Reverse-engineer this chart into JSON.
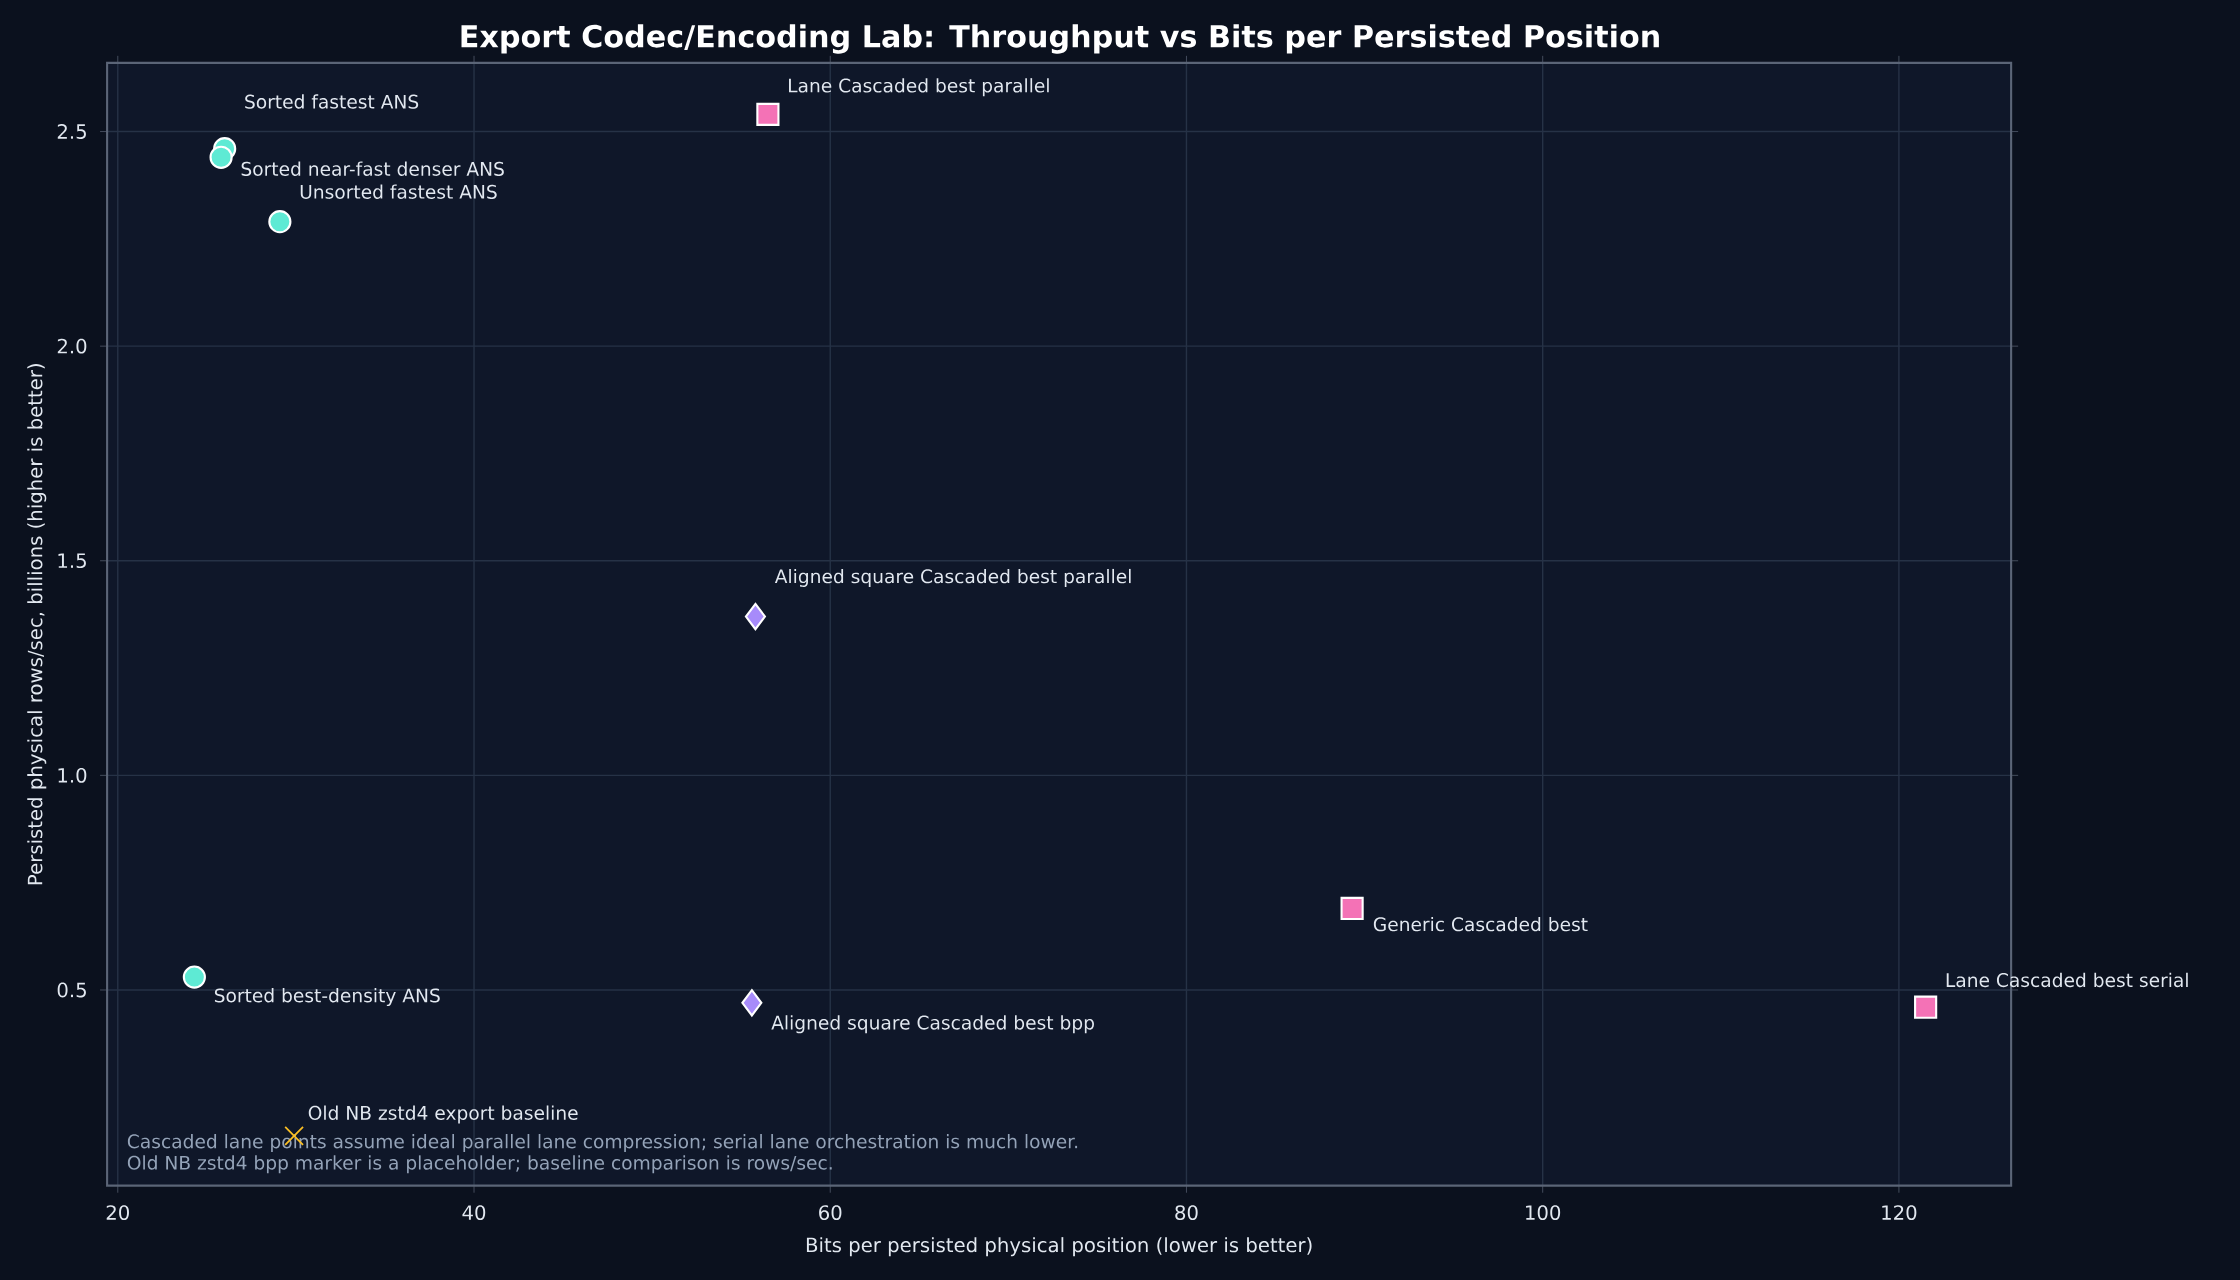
{
  "chart_data": {
    "type": "scatter",
    "title": "Export Codec/Encoding Lab: Throughput vs Bits per Persisted Position",
    "xlabel": "Bits per persisted physical position (lower is better)",
    "ylabel": "Persisted physical rows/sec, billions (higher is better)",
    "xlim": [
      19.4,
      126.3
    ],
    "ylim": [
      0.044,
      2.66
    ],
    "xticks": [
      20,
      40,
      60,
      80,
      100,
      120
    ],
    "yticks": [
      {
        "value": 0.5,
        "label": "0.5"
      },
      {
        "value": 1,
        "label": "1.0"
      },
      {
        "value": 1.5,
        "label": "1.5"
      },
      {
        "value": 2,
        "label": "2.0"
      },
      {
        "value": 2.5,
        "label": "2.5"
      }
    ],
    "grid": true,
    "series": [
      {
        "color": "#5eead4",
        "marker": "circle",
        "x": [
          26.0,
          25.8,
          29.1,
          24.3
        ],
        "values": [
          2.46,
          2.44,
          2.29,
          0.53
        ]
      },
      {
        "color": "#f472b6",
        "marker": "square",
        "x": [
          56.5,
          89.3,
          121.5
        ],
        "values": [
          2.54,
          0.69,
          0.46
        ]
      },
      {
        "color": "#a78bfa",
        "marker": "diamond",
        "x": [
          55.8,
          55.6
        ],
        "values": [
          1.37,
          0.47
        ]
      },
      {
        "color": "#fbbf24",
        "marker": "cross",
        "x": [
          29.9
        ],
        "values": [
          0.16
        ]
      }
    ],
    "annotations": [
      {
        "text": "Sorted fastest ANS",
        "x": 26.0,
        "y": 2.46
      },
      {
        "text": "Sorted near-fast denser ANS",
        "x": 25.8,
        "y": 2.44
      },
      {
        "text": "Unsorted fastest ANS",
        "x": 29.1,
        "y": 2.29
      },
      {
        "text": "Sorted best-density ANS",
        "x": 24.3,
        "y": 0.53
      },
      {
        "text": "Lane Cascaded best parallel",
        "x": 56.5,
        "y": 2.54
      },
      {
        "text": "Aligned square Cascaded best parallel",
        "x": 55.8,
        "y": 1.37
      },
      {
        "text": "Aligned square Cascaded best bpp",
        "x": 55.6,
        "y": 0.47
      },
      {
        "text": "Generic Cascaded best",
        "x": 89.3,
        "y": 0.69
      },
      {
        "text": "Lane Cascaded best serial",
        "x": 121.5,
        "y": 0.46
      },
      {
        "text": "Old NB zstd4 export baseline",
        "x": 29.9,
        "y": 0.16
      },
      "Cascaded lane points assume ideal parallel lane compression; serial lane orchestration is much lower.",
      "Old NB zstd4 bpp marker is a placeholder; baseline comparison is rows/sec."
    ]
  }
}
